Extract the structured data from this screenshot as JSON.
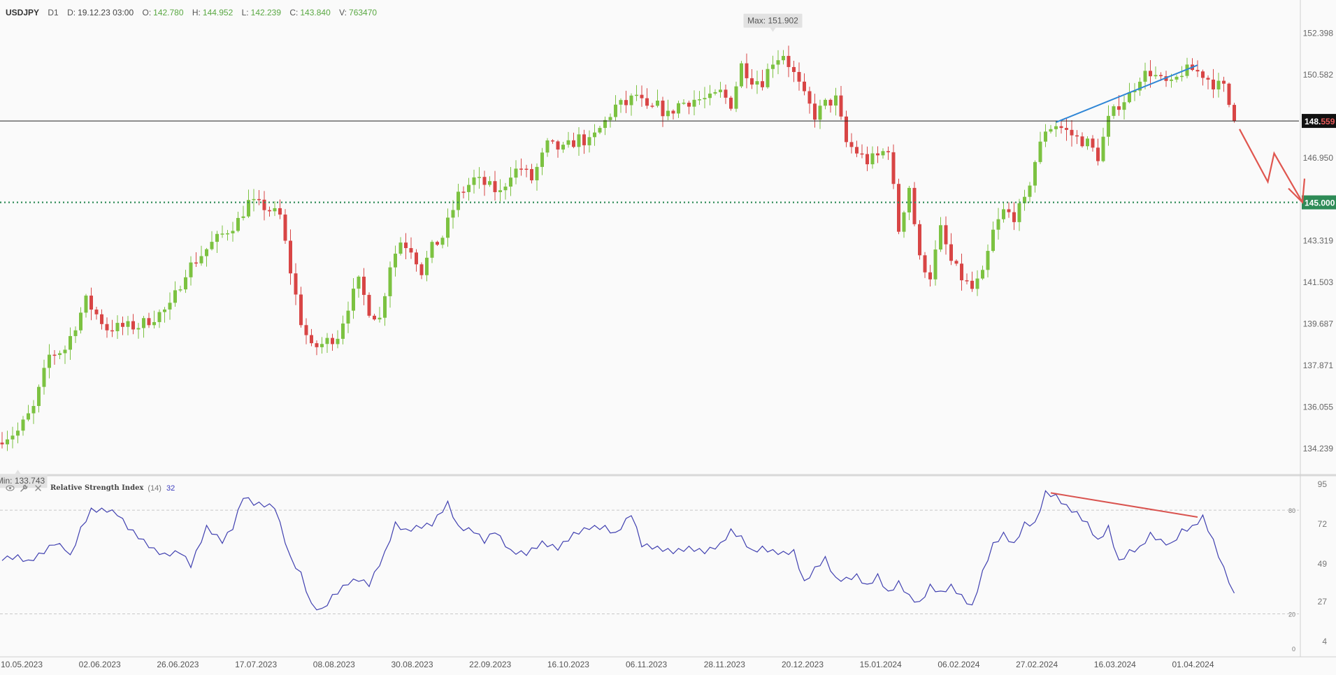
{
  "header": {
    "symbol": "USDJPY",
    "timeframe": "D1",
    "date_label": "D:",
    "date_value": "19.12.23 03:00",
    "open_label": "O:",
    "open_value": "142.780",
    "high_label": "H:",
    "high_value": "144.952",
    "low_label": "L:",
    "low_value": "142.239",
    "close_label": "C:",
    "close_value": "143.840",
    "volume_label": "V:",
    "volume_value": "763470"
  },
  "rsi_panel": {
    "name": "Relative Strength Index",
    "period": "(14)",
    "value": "32"
  },
  "colors": {
    "bull": "#7cc241",
    "bear": "#d84545",
    "rsi_line": "#4040b0",
    "support": "#2e8b57",
    "trendline_price": "#2f86d6",
    "trendline_rsi": "#d9534f",
    "arrow": "#e0564f",
    "current_price_bg": "#111111"
  },
  "chart_data": [
    {
      "type": "candlestick",
      "title": "",
      "xlabel": "",
      "ylabel": "",
      "ylim": [
        133.2,
        153.6
      ],
      "x_tick_labels": [
        "10.05.2023",
        "02.06.2023",
        "26.06.2023",
        "17.07.2023",
        "08.08.2023",
        "30.08.2023",
        "22.09.2023",
        "16.10.2023",
        "06.11.2023",
        "28.11.2023",
        "20.12.2023",
        "15.01.2024",
        "06.02.2024",
        "27.02.2024",
        "16.03.2024",
        "01.04.2024"
      ],
      "y_tick_values": [
        152.398,
        150.582,
        146.95,
        143.319,
        141.503,
        139.687,
        137.871,
        136.055,
        134.239
      ],
      "y_tick_labels": [
        "152.398",
        "150.582",
        "146.950",
        "143.319",
        "141.503",
        "139.687",
        "137.871",
        "136.055",
        "134.239"
      ],
      "max_label": "Max: 151.902",
      "max_value": 151.902,
      "min_label": "Min: 133.743",
      "min_value": 133.743,
      "current_price": 148.559,
      "current_price_label": "148.559",
      "support_level": 145.0,
      "support_label": "145.000",
      "grid": false,
      "close_anchors": [
        [
          0,
          134.7
        ],
        [
          3,
          135.0
        ],
        [
          6,
          136.0
        ],
        [
          9,
          138.3
        ],
        [
          12,
          138.6
        ],
        [
          16,
          140.7
        ],
        [
          20,
          139.5
        ],
        [
          26,
          139.6
        ],
        [
          32,
          140.4
        ],
        [
          35,
          142.0
        ],
        [
          40,
          143.2
        ],
        [
          45,
          144.2
        ],
        [
          47,
          145.0
        ],
        [
          50,
          144.8
        ],
        [
          53,
          144.4
        ],
        [
          55,
          142.0
        ],
        [
          57,
          139.8
        ],
        [
          59,
          138.6
        ],
        [
          61,
          138.8
        ],
        [
          64,
          139.2
        ],
        [
          66,
          140.5
        ],
        [
          68,
          141.5
        ],
        [
          70,
          140.3
        ],
        [
          72,
          139.9
        ],
        [
          74,
          142.3
        ],
        [
          76,
          143.3
        ],
        [
          78,
          143.0
        ],
        [
          80,
          142.0
        ],
        [
          82,
          143.0
        ],
        [
          84,
          143.5
        ],
        [
          87,
          145.3
        ],
        [
          90,
          146.0
        ],
        [
          92,
          145.8
        ],
        [
          95,
          145.4
        ],
        [
          97,
          146.3
        ],
        [
          99,
          146.5
        ],
        [
          101,
          146.0
        ],
        [
          104,
          147.5
        ],
        [
          107,
          147.3
        ],
        [
          110,
          147.8
        ],
        [
          112,
          147.6
        ],
        [
          114,
          148.2
        ],
        [
          117,
          149.2
        ],
        [
          119,
          149.3
        ],
        [
          121,
          149.7
        ],
        [
          123,
          149.0
        ],
        [
          125,
          149.2
        ],
        [
          127,
          148.8
        ],
        [
          129,
          149.3
        ],
        [
          132,
          149.5
        ],
        [
          135,
          149.5
        ],
        [
          137,
          149.8
        ],
        [
          139,
          149.3
        ],
        [
          141,
          151.0
        ],
        [
          143,
          150.4
        ],
        [
          145,
          150.3
        ],
        [
          147,
          151.2
        ],
        [
          149,
          151.5
        ],
        [
          151,
          150.6
        ],
        [
          153,
          149.6
        ],
        [
          155,
          148.8
        ],
        [
          157,
          149.3
        ],
        [
          159,
          149.5
        ],
        [
          161,
          147.6
        ],
        [
          163,
          147.2
        ],
        [
          165,
          146.8
        ],
        [
          167,
          147.0
        ],
        [
          169,
          147.4
        ],
        [
          171,
          143.8
        ],
        [
          173,
          145.7
        ],
        [
          175,
          142.5
        ],
        [
          177,
          141.8
        ],
        [
          179,
          143.8
        ],
        [
          181,
          142.4
        ],
        [
          183,
          141.7
        ],
        [
          185,
          141.2
        ],
        [
          187,
          141.8
        ],
        [
          189,
          143.7
        ],
        [
          191,
          144.6
        ],
        [
          193,
          144.4
        ],
        [
          195,
          145.0
        ],
        [
          197,
          146.8
        ],
        [
          199,
          148.2
        ],
        [
          201,
          148.4
        ],
        [
          203,
          148.1
        ],
        [
          205,
          147.8
        ],
        [
          207,
          147.6
        ],
        [
          209,
          147.0
        ],
        [
          211,
          148.6
        ],
        [
          213,
          149.3
        ],
        [
          215,
          149.7
        ],
        [
          217,
          150.5
        ],
        [
          219,
          150.7
        ],
        [
          221,
          150.3
        ],
        [
          223,
          150.1
        ],
        [
          225,
          150.7
        ],
        [
          227,
          150.8
        ],
        [
          229,
          150.6
        ],
        [
          231,
          150.2
        ],
        [
          233,
          150.0
        ],
        [
          235,
          148.559
        ]
      ],
      "series": [
        {
          "name": "USDJPY",
          "kind": "ohlc",
          "description_source": "close_anchors"
        }
      ],
      "annotations": [
        {
          "type": "trendline",
          "from": [
            201,
            148.5
          ],
          "to": [
            228,
            151.0
          ]
        },
        {
          "type": "arrow",
          "from": [
            236,
            148.2
          ],
          "to": [
            248,
            145.0
          ]
        }
      ]
    },
    {
      "type": "line",
      "title": "",
      "ylim": [
        0,
        100
      ],
      "y_tick_labels": [
        "95",
        "80",
        "72",
        "49",
        "27",
        "20",
        "4",
        "0"
      ],
      "y_tick_values": [
        95,
        80,
        72,
        49,
        27,
        20,
        4,
        0
      ],
      "levels": [
        80,
        20
      ],
      "rsi_anchors": [
        [
          0,
          52
        ],
        [
          3,
          53
        ],
        [
          5,
          50
        ],
        [
          8,
          56
        ],
        [
          10,
          61
        ],
        [
          12,
          58
        ],
        [
          13,
          53
        ],
        [
          15,
          69
        ],
        [
          17,
          80
        ],
        [
          20,
          80
        ],
        [
          22,
          78
        ],
        [
          24,
          70
        ],
        [
          27,
          62
        ],
        [
          29,
          57
        ],
        [
          31,
          54
        ],
        [
          34,
          56
        ],
        [
          36,
          48
        ],
        [
          39,
          70
        ],
        [
          42,
          62
        ],
        [
          44,
          70
        ],
        [
          46,
          88
        ],
        [
          48,
          84
        ],
        [
          52,
          82
        ],
        [
          55,
          52
        ],
        [
          57,
          43
        ],
        [
          59,
          25
        ],
        [
          61,
          22
        ],
        [
          63,
          30
        ],
        [
          66,
          38
        ],
        [
          68,
          40
        ],
        [
          70,
          37
        ],
        [
          73,
          55
        ],
        [
          75,
          72
        ],
        [
          77,
          68
        ],
        [
          79,
          70
        ],
        [
          82,
          72
        ],
        [
          85,
          84
        ],
        [
          87,
          70
        ],
        [
          90,
          68
        ],
        [
          92,
          62
        ],
        [
          94,
          68
        ],
        [
          97,
          56
        ],
        [
          100,
          55
        ],
        [
          103,
          61
        ],
        [
          106,
          58
        ],
        [
          109,
          66
        ],
        [
          112,
          70
        ],
        [
          115,
          70
        ],
        [
          117,
          66
        ],
        [
          120,
          78
        ],
        [
          122,
          60
        ],
        [
          125,
          58
        ],
        [
          128,
          56
        ],
        [
          131,
          58
        ],
        [
          134,
          56
        ],
        [
          137,
          60
        ],
        [
          139,
          68
        ],
        [
          141,
          64
        ],
        [
          143,
          56
        ],
        [
          145,
          58
        ],
        [
          147,
          56
        ],
        [
          149,
          55
        ],
        [
          151,
          56
        ],
        [
          153,
          38
        ],
        [
          155,
          46
        ],
        [
          157,
          52
        ],
        [
          159,
          40
        ],
        [
          161,
          40
        ],
        [
          163,
          42
        ],
        [
          165,
          36
        ],
        [
          167,
          42
        ],
        [
          169,
          32
        ],
        [
          171,
          38
        ],
        [
          173,
          30
        ],
        [
          175,
          26
        ],
        [
          177,
          36
        ],
        [
          179,
          32
        ],
        [
          181,
          36
        ],
        [
          183,
          30
        ],
        [
          185,
          24
        ],
        [
          187,
          44
        ],
        [
          189,
          60
        ],
        [
          191,
          66
        ],
        [
          193,
          60
        ],
        [
          195,
          72
        ],
        [
          197,
          72
        ],
        [
          199,
          90
        ],
        [
          201,
          88
        ],
        [
          203,
          82
        ],
        [
          205,
          78
        ],
        [
          207,
          72
        ],
        [
          209,
          62
        ],
        [
          211,
          70
        ],
        [
          213,
          50
        ],
        [
          215,
          56
        ],
        [
          217,
          58
        ],
        [
          219,
          66
        ],
        [
          221,
          62
        ],
        [
          223,
          60
        ],
        [
          225,
          68
        ],
        [
          227,
          70
        ],
        [
          229,
          76
        ],
        [
          231,
          62
        ],
        [
          233,
          46
        ],
        [
          235,
          32
        ]
      ],
      "annotations": [
        {
          "type": "trendline",
          "from": [
            200,
            90
          ],
          "to": [
            228,
            76
          ]
        }
      ]
    }
  ]
}
